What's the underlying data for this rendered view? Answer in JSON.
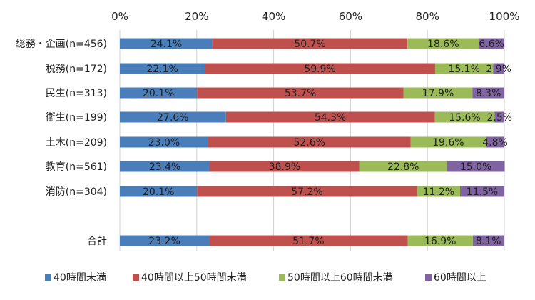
{
  "chart_data": {
    "type": "bar",
    "orientation": "horizontal",
    "stacked": true,
    "xlim": [
      0,
      100
    ],
    "x_ticks": [
      "0%",
      "20%",
      "40%",
      "60%",
      "80%",
      "100%"
    ],
    "categories": [
      "総務・企画(n=456)",
      "税務(n=172)",
      "民生(n=313)",
      "衛生(n=199)",
      "土木(n=209)",
      "教育(n=561)",
      "消防(n=304)",
      "",
      "合計"
    ],
    "series": [
      {
        "name": "40時間未満",
        "color": "#4a7ebb",
        "values": [
          24.1,
          22.1,
          20.1,
          27.6,
          23.0,
          23.4,
          20.1,
          null,
          23.2
        ],
        "labels": [
          "24.1%",
          "22.1%",
          "20.1%",
          "27.6%",
          "23.0%",
          "23.4%",
          "20.1%",
          "",
          "23.2%"
        ]
      },
      {
        "name": "40時間以上50時間未満",
        "color": "#c0504d",
        "values": [
          50.7,
          59.9,
          53.7,
          54.3,
          52.6,
          38.9,
          57.2,
          null,
          51.7
        ],
        "labels": [
          "50.7%",
          "59.9%",
          "53.7%",
          "54.3%",
          "52.6%",
          "38.9%",
          "57.2%",
          "",
          "51.7%"
        ]
      },
      {
        "name": "50時間以上60時間未満",
        "color": "#9bbb59",
        "values": [
          18.6,
          15.1,
          17.9,
          15.6,
          19.6,
          22.8,
          11.2,
          null,
          16.9
        ],
        "labels": [
          "18.6%",
          "15.1%",
          "17.9%",
          "15.6%",
          "19.6%",
          "22.8%",
          "11.2%",
          "",
          "16.9%"
        ]
      },
      {
        "name": "60時間以上",
        "color": "#8064a2",
        "values": [
          6.6,
          2.9,
          8.3,
          2.5,
          4.8,
          15.0,
          11.5,
          null,
          8.1
        ],
        "labels": [
          "6.6%",
          "2.9%",
          "8.3%",
          "2.5%",
          "4.8%",
          "15.0%",
          "11.5%",
          "",
          "8.1%"
        ]
      }
    ],
    "gridlines": true,
    "legend_position": "bottom"
  }
}
